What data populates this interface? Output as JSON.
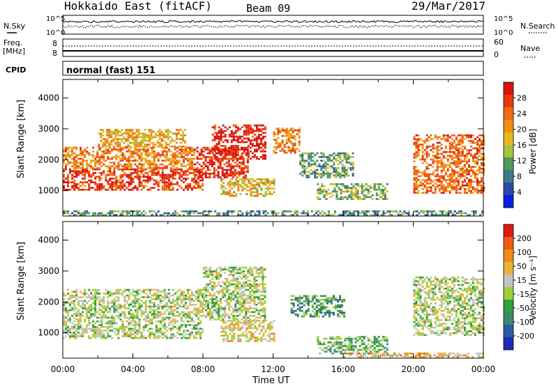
{
  "header": {
    "station": "Hokkaido East (fitACF)",
    "beam": "Beam 09",
    "date": "29/Mar/2017"
  },
  "labels": {
    "nsky": "N.Sky",
    "nsearch": "N.Search",
    "freq": "Freq.",
    "freq_unit": "[MHz]",
    "nave": "Nave",
    "cpid": "CPID",
    "cpid_value": "normal (fast) 151",
    "noise_top": "10^5",
    "noise_bottom": "10^0",
    "freq_top": "8",
    "freq_bottom": "8",
    "nave_top": "60",
    "nave_bottom": "0",
    "x_axis_title": "Time UT",
    "y_axis_title": "Slant Range [km]",
    "power_cbar_title": "Power [dB]",
    "velocity_cbar_title": "Velocity [m s⁻¹]"
  },
  "chart_data": [
    {
      "type": "heatmap",
      "name": "power",
      "x_ticks": [
        "00:00",
        "04:00",
        "08:00",
        "12:00",
        "16:00",
        "20:00",
        "00:00"
      ],
      "xlim_hours": [
        0,
        24
      ],
      "ylim_km": [
        180,
        4600
      ],
      "y_ticks": [
        1000,
        2000,
        3000,
        4000
      ],
      "xlabel": "Time UT",
      "ylabel": "Slant Range [km]",
      "colorbar": {
        "title": "Power [dB]",
        "ticks": [
          "4",
          "8",
          "12",
          "16",
          "20",
          "24",
          "28"
        ],
        "colors": [
          "#0a1fe6",
          "#2a4aa8",
          "#3c7a8a",
          "#4f9a55",
          "#a7c33a",
          "#e6b81e",
          "#f08f16",
          "#f06a10",
          "#e8380f",
          "#d81210"
        ]
      },
      "regions": [
        {
          "t0": 0.0,
          "t1": 8.0,
          "r0": 1000,
          "r1": 1700,
          "level": 0.85
        },
        {
          "t0": 0.0,
          "t1": 7.5,
          "r0": 1700,
          "r1": 2400,
          "level": 0.7
        },
        {
          "t0": 2.0,
          "t1": 7.0,
          "r0": 2400,
          "r1": 3000,
          "level": 0.6
        },
        {
          "t0": 7.5,
          "t1": 10.5,
          "r0": 1400,
          "r1": 2400,
          "level": 0.9
        },
        {
          "t0": 8.5,
          "t1": 11.5,
          "r0": 2000,
          "r1": 3100,
          "level": 0.95
        },
        {
          "t0": 9.0,
          "t1": 12.0,
          "r0": 800,
          "r1": 1400,
          "level": 0.55
        },
        {
          "t0": 12.0,
          "t1": 13.5,
          "r0": 2200,
          "r1": 3000,
          "level": 0.7
        },
        {
          "t0": 13.5,
          "t1": 16.5,
          "r0": 1400,
          "r1": 2200,
          "level": 0.35
        },
        {
          "t0": 14.5,
          "t1": 18.5,
          "r0": 700,
          "r1": 1200,
          "level": 0.4
        },
        {
          "t0": 20.0,
          "t1": 24.0,
          "r0": 900,
          "r1": 2800,
          "level": 0.75
        },
        {
          "t0": 0.0,
          "t1": 24.0,
          "r0": 180,
          "r1": 350,
          "level": 0.3
        }
      ]
    },
    {
      "type": "heatmap",
      "name": "velocity",
      "x_ticks": [
        "00:00",
        "04:00",
        "08:00",
        "12:00",
        "16:00",
        "20:00",
        "00:00"
      ],
      "xlim_hours": [
        0,
        24
      ],
      "ylim_km": [
        180,
        4600
      ],
      "y_ticks": [
        1000,
        2000,
        3000,
        4000
      ],
      "xlabel": "Time UT",
      "ylabel": "Slant Range [km]",
      "colorbar": {
        "title": "Velocity [m s⁻¹]",
        "ticks": [
          "200",
          "100",
          "50",
          "15",
          "-15",
          "-50",
          "-100",
          "-200"
        ],
        "colors": [
          "#1c2cb8",
          "#2e5aa0",
          "#3a8a6a",
          "#2f9e3c",
          "#9dcf3c",
          "#c4c4c4",
          "#e8b23c",
          "#f08a18",
          "#f05a10",
          "#e01a10"
        ]
      },
      "regions": [
        {
          "t0": 0.0,
          "t1": 8.0,
          "r0": 800,
          "r1": 2400,
          "level": 0.5
        },
        {
          "t0": 8.0,
          "t1": 11.5,
          "r0": 1400,
          "r1": 3100,
          "level": 0.5
        },
        {
          "t0": 9.0,
          "t1": 12.0,
          "r0": 700,
          "r1": 1400,
          "level": 0.58
        },
        {
          "t0": 13.0,
          "t1": 16.0,
          "r0": 1500,
          "r1": 2200,
          "level": 0.3
        },
        {
          "t0": 14.5,
          "t1": 18.5,
          "r0": 300,
          "r1": 900,
          "level": 0.38
        },
        {
          "t0": 20.0,
          "t1": 24.0,
          "r0": 900,
          "r1": 2800,
          "level": 0.5
        },
        {
          "t0": 16.0,
          "t1": 24.0,
          "r0": 180,
          "r1": 320,
          "level": 0.66
        }
      ]
    }
  ]
}
